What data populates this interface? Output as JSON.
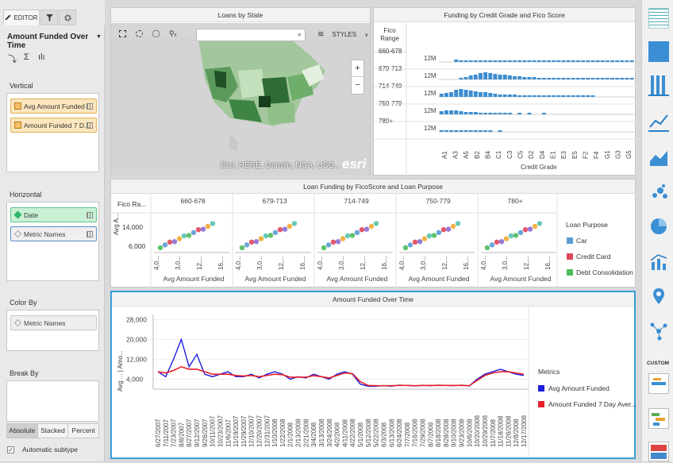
{
  "editor": {
    "tabs": [
      {
        "label": "EDITOR"
      },
      {
        "label": ""
      },
      {
        "label": ""
      }
    ],
    "viz_name": "Amount Funded Over Time",
    "vertical": {
      "label": "Vertical",
      "items": [
        "Avg Amount Funded",
        "Amount Funded 7 D..."
      ]
    },
    "horizontal": {
      "label": "Horizontal",
      "items": [
        "Date",
        "Metric Names"
      ]
    },
    "color_by": {
      "label": "Color By",
      "items": [
        "Metric Names"
      ]
    },
    "break_by": {
      "label": "Break By"
    },
    "modes": [
      "Absolute",
      "Stacked",
      "Percent"
    ],
    "auto_subtype": "Automatic subtype"
  },
  "map_panel": {
    "title": "Loans by State",
    "styles_label": "STYLES",
    "search_placeholder": "",
    "attribution": "Esri, HERE, Garmin, NGA, USG...",
    "logo": "esri",
    "zoom_in": "+",
    "zoom_out": "−"
  },
  "fico_panel": {
    "title": "Funding by Credit Grade and Fico Score",
    "row_header": "Fico Range",
    "rows": [
      "660-678",
      "679-713",
      "714-749",
      "750-779",
      "780+"
    ],
    "y_tick": "12M",
    "x_label": "Credit Grade",
    "grades": [
      "A1",
      "A3",
      "A5",
      "B2",
      "B4",
      "C1",
      "C3",
      "C5",
      "D2",
      "D4",
      "E1",
      "E3",
      "E5",
      "F2",
      "F4",
      "G1",
      "G3",
      "G5"
    ]
  },
  "scatter_panel": {
    "title": "Loan Funding by FicoScore and Loan Purpose",
    "row_header": "Fico Ra...",
    "y_label": "Avg A...",
    "y_ticks": [
      "14,000",
      "6,000"
    ],
    "columns": [
      "660-678",
      "679-713",
      "714-749",
      "750-779",
      "780+"
    ],
    "x_label": "Avg Amount Funded",
    "x_ticks": [
      "4,0...",
      "3,0...",
      "12,...",
      "16,..."
    ],
    "legend_title": "Loan Purpose",
    "legend": [
      {
        "name": "Car",
        "color": "#5b9bd5"
      },
      {
        "name": "Credit Card",
        "color": "#e0465b"
      },
      {
        "name": "Debt Consolidation",
        "color": "#4cbb5b"
      }
    ]
  },
  "line_panel": {
    "title": "Amount Funded Over Time",
    "y_label": "Avg ... | Amo...",
    "legend_title": "Metrics",
    "legend": [
      {
        "name": "Avg Amount Funded",
        "color": "#1f1fe0"
      },
      {
        "name": "Amount Funded 7 Day Aver...",
        "color": "#e8202a"
      }
    ]
  },
  "chart_data": [
    {
      "type": "line",
      "title": "Amount Funded Over Time",
      "ylabel": "Avg ... | Amo...",
      "yticks": [
        4000,
        12000,
        20000,
        28000
      ],
      "ylim": [
        0,
        30000
      ],
      "x": [
        "6/27/2007",
        "7/11/2007",
        "7/23/2007",
        "8/8/2007",
        "8/27/2007",
        "9/12/2007",
        "9/26/2007",
        "10/11/2007",
        "10/23/2007",
        "11/6/2007",
        "11/19/2007",
        "11/29/2007",
        "12/10/2007",
        "12/20/2007",
        "12/31/2007",
        "1/10/2008",
        "1/22/2008",
        "2/1/2008",
        "2/13/2008",
        "2/21/2008",
        "3/4/2008",
        "3/13/2008",
        "3/24/2008",
        "4/2/2008",
        "4/11/2008",
        "4/22/2008",
        "5/1/2008",
        "5/12/2008",
        "5/22/2008",
        "6/3/2008",
        "6/13/2008",
        "6/24/2008",
        "7/7/2008",
        "7/16/2008",
        "7/29/2008",
        "8/7/2008",
        "8/18/2008",
        "8/28/2008",
        "9/10/2008",
        "9/23/2008",
        "10/6/2008",
        "10/20/2008",
        "10/29/2008",
        "11/7/2008",
        "11/18/2008",
        "11/26/2008",
        "12/8/2008",
        "12/17/2008"
      ],
      "series": [
        {
          "name": "Avg Amount Funded",
          "color": "#1f1fe0",
          "values": [
            7000,
            5000,
            12000,
            20000,
            9000,
            14000,
            6000,
            5000,
            6000,
            7000,
            5000,
            5000,
            6000,
            4500,
            6000,
            7000,
            6000,
            4000,
            5000,
            4500,
            6000,
            5000,
            4000,
            6000,
            7000,
            6000,
            2000,
            1200,
            1200,
            1400,
            1200,
            1600,
            1500,
            1300,
            1500,
            1400,
            1600,
            1500,
            1400,
            1600,
            1300,
            4000,
            6000,
            7000,
            8000,
            7000,
            6000,
            5500
          ]
        },
        {
          "name": "Amount Funded 7 Day Aver...",
          "color": "#e8202a",
          "values": [
            7000,
            6500,
            7500,
            9000,
            8000,
            8000,
            7000,
            6000,
            6000,
            6000,
            5500,
            5300,
            5500,
            5000,
            5500,
            6000,
            5800,
            4800,
            4800,
            4800,
            5400,
            5000,
            4500,
            5500,
            6500,
            6200,
            3000,
            1500,
            1400,
            1400,
            1400,
            1500,
            1500,
            1400,
            1500,
            1500,
            1500,
            1500,
            1500,
            1500,
            1400,
            3500,
            5500,
            6500,
            7000,
            7000,
            6500,
            6000
          ]
        }
      ]
    }
  ]
}
